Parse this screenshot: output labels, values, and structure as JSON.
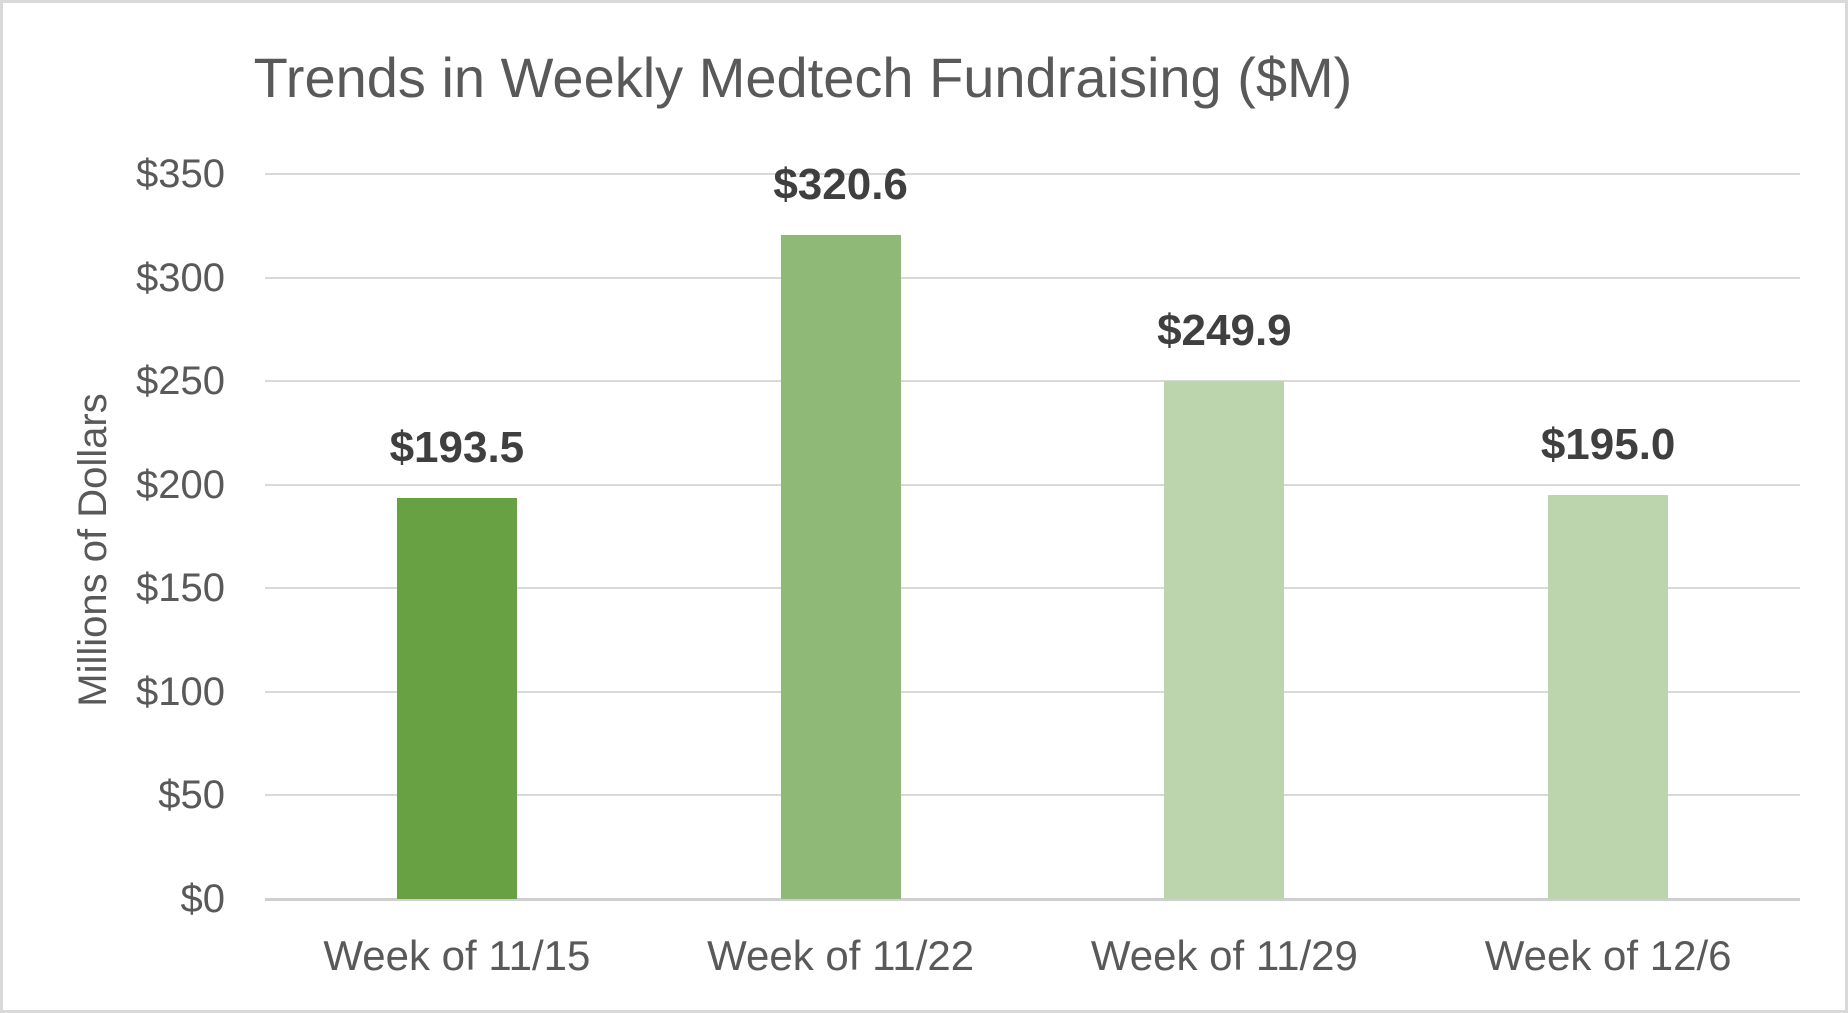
{
  "chart_data": {
    "type": "bar",
    "title": "Trends in Weekly Medtech Fundraising ($M)",
    "xlabel": "",
    "ylabel": "Millions of Dollars",
    "categories": [
      "Week of 11/15",
      "Week of 11/22",
      "Week of 11/29",
      "Week of 12/6"
    ],
    "values": [
      193.5,
      320.6,
      249.9,
      195.0
    ],
    "value_labels": [
      "$193.5",
      "$320.6",
      "$249.9",
      "$195.0"
    ],
    "bar_colors": [
      "#67a143",
      "#8fb977",
      "#bdd5ad",
      "#bdd5ad"
    ],
    "ylim": [
      0,
      350
    ],
    "ytick_step": 50,
    "ytick_values": [
      0,
      50,
      100,
      150,
      200,
      250,
      300,
      350
    ],
    "ytick_labels": [
      "$0",
      "$50",
      "$100",
      "$150",
      "$200",
      "$250",
      "$300",
      "$350"
    ],
    "grid": true,
    "legend": false
  },
  "style": {
    "text_color": "#595959",
    "value_label_color": "#3f3f3f",
    "gridline_color": "#d9d9d9",
    "axis_line_color": "#cfcfcf",
    "background": "#ffffff",
    "border_color": "#d9d9d9"
  }
}
